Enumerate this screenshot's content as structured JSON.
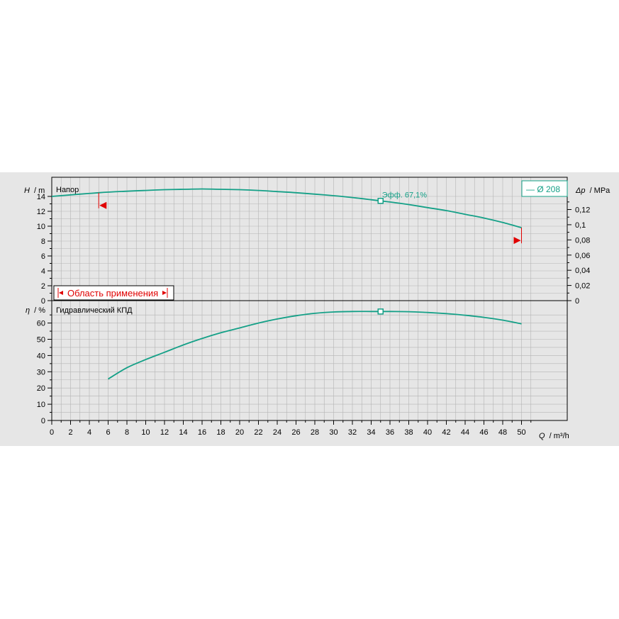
{
  "colors": {
    "curve": "#14a087",
    "operating_range": "#e00000",
    "grid": "#b4b4b4",
    "plot_bg": "#e6e6e6"
  },
  "chart_data": [
    {
      "type": "line",
      "panel_title": "Напор",
      "ylabel_symbol": "H",
      "ylabel_unit": "/ m",
      "y2label_symbol": "Δp",
      "y2label_unit": "/ MPa",
      "ylim": [
        0,
        15
      ],
      "yticks": [
        "0",
        "2",
        "4",
        "6",
        "8",
        "10",
        "12",
        "14"
      ],
      "y2ticks": [
        "0",
        "0,02",
        "0,04",
        "0,06",
        "0,08",
        "0,1",
        "0,12"
      ],
      "xlim": [
        0,
        52
      ],
      "grid": true,
      "legend": {
        "position": "top-right",
        "label": "— Ø 208"
      },
      "series": [
        {
          "name": "Ø 208",
          "x": [
            0,
            5,
            8,
            10,
            12,
            14,
            16,
            18,
            20,
            22,
            24,
            26,
            28,
            30,
            32,
            34,
            35,
            36,
            38,
            40,
            42,
            44,
            46,
            48,
            50
          ],
          "y": [
            14.0,
            14.5,
            14.7,
            14.8,
            14.9,
            14.95,
            15.0,
            14.95,
            14.9,
            14.8,
            14.65,
            14.5,
            14.3,
            14.1,
            13.85,
            13.55,
            13.4,
            13.25,
            12.9,
            12.5,
            12.1,
            11.6,
            11.1,
            10.5,
            9.8
          ]
        }
      ],
      "best_efficiency_point": {
        "x": 35,
        "y": 13.4,
        "label": "Эфф.  67,1%"
      },
      "operating_range": {
        "label": "Область применения",
        "qmin": 5,
        "qmax": 50
      }
    },
    {
      "type": "line",
      "panel_title": "Гидравлический КПД",
      "ylabel_symbol": "η",
      "ylabel_unit": "/ %",
      "ylim": [
        0,
        70
      ],
      "yticks": [
        "0",
        "10",
        "20",
        "30",
        "40",
        "50",
        "60"
      ],
      "xlabel_symbol": "Q",
      "xlabel_unit": "/ m³/h",
      "xlim": [
        0,
        52
      ],
      "xticks": [
        "0",
        "2",
        "4",
        "6",
        "8",
        "10",
        "12",
        "14",
        "16",
        "18",
        "20",
        "22",
        "24",
        "26",
        "28",
        "30",
        "32",
        "34",
        "36",
        "38",
        "40",
        "42",
        "44",
        "46",
        "48",
        "50"
      ],
      "grid": true,
      "series": [
        {
          "name": "Ø 208",
          "x": [
            6,
            8,
            10,
            12,
            14,
            16,
            18,
            20,
            22,
            24,
            26,
            28,
            30,
            32,
            34,
            35,
            36,
            38,
            40,
            42,
            44,
            46,
            48,
            50
          ],
          "y": [
            25.5,
            32.5,
            37.5,
            42,
            46.5,
            50.5,
            54,
            57,
            60,
            62.5,
            64.5,
            66,
            66.8,
            67.1,
            67.1,
            67.1,
            67.1,
            67,
            66.5,
            65.8,
            64.8,
            63.5,
            61.8,
            59.5
          ]
        }
      ],
      "best_efficiency_point": {
        "x": 35,
        "y": 67.1
      }
    }
  ]
}
